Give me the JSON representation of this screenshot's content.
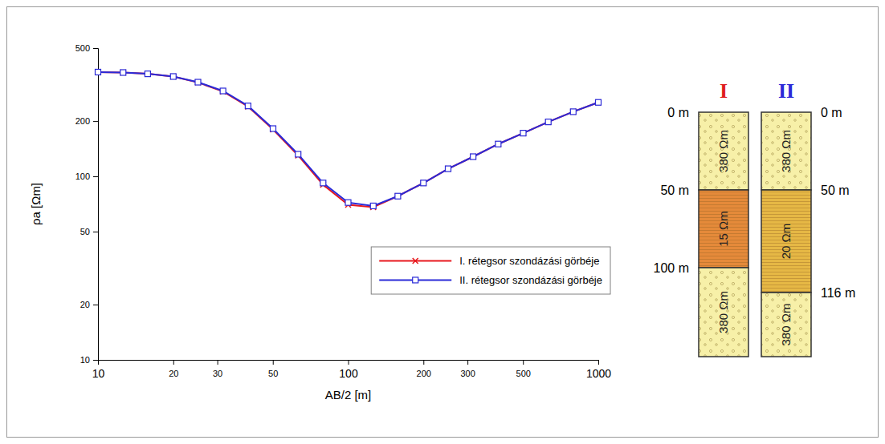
{
  "chart_data": {
    "type": "line",
    "log": true,
    "grid": false,
    "legend": "lower right",
    "xlabel": "AB/2 [m]",
    "ylabel": "ρa [Ωm]",
    "x": [
      10,
      12.6,
      15.8,
      20,
      25.1,
      31.6,
      39.8,
      50.1,
      63.1,
      79.4,
      100,
      126,
      158,
      200,
      251,
      316,
      398,
      501,
      631,
      794,
      1000
    ],
    "series": [
      {
        "name": "I. rétegsor szondázási görbéje",
        "color": "#e8191e",
        "marker": "x",
        "values": [
          370,
          368,
          362,
          350,
          325,
          290,
          240,
          180,
          130,
          90,
          70,
          68,
          78,
          92,
          110,
          128,
          150,
          172,
          198,
          225,
          253
        ]
      },
      {
        "name": "II. rétegsor szondázási görbéje",
        "color": "#2a2ad8",
        "marker": "square",
        "values": [
          370,
          368,
          362,
          350,
          326,
          292,
          242,
          182,
          132,
          92,
          72,
          69,
          78,
          92,
          110,
          128,
          150,
          172,
          198,
          225,
          253
        ]
      }
    ],
    "xlim": [
      10,
      1000
    ],
    "ylim": [
      10,
      500
    ],
    "xticks": [
      10,
      20,
      30,
      50,
      100,
      200,
      300,
      500,
      1000
    ],
    "yticks": [
      10,
      20,
      50,
      100,
      200,
      500
    ]
  },
  "columns": [
    {
      "label": "I",
      "color": "#e01f1f",
      "layers": [
        {
          "top": 0,
          "bottom": 50,
          "label": "380 Ωm",
          "color": "#f7f0a8"
        },
        {
          "top": 50,
          "bottom": 100,
          "label": "15 Ωm",
          "color": "#e58a3a"
        },
        {
          "top": 100,
          "bottom": null,
          "label": "380 Ωm",
          "color": "#f7f0a8"
        }
      ],
      "depth_labels": [
        {
          "value": 0,
          "label": "0 m"
        },
        {
          "value": 50,
          "label": "50 m"
        },
        {
          "value": 100,
          "label": "100 m"
        }
      ]
    },
    {
      "label": "II",
      "color": "#2a2ad8",
      "layers": [
        {
          "top": 0,
          "bottom": 50,
          "label": "380 Ωm",
          "color": "#f7f0a8"
        },
        {
          "top": 50,
          "bottom": 116,
          "label": "20 Ωm",
          "color": "#e6b845"
        },
        {
          "top": 116,
          "bottom": null,
          "label": "380 Ωm",
          "color": "#f7f0a8"
        }
      ],
      "depth_labels": [
        {
          "value": 0,
          "label": "0 m"
        },
        {
          "value": 50,
          "label": "50 m"
        },
        {
          "value": 116,
          "label": "116 m"
        }
      ]
    }
  ]
}
